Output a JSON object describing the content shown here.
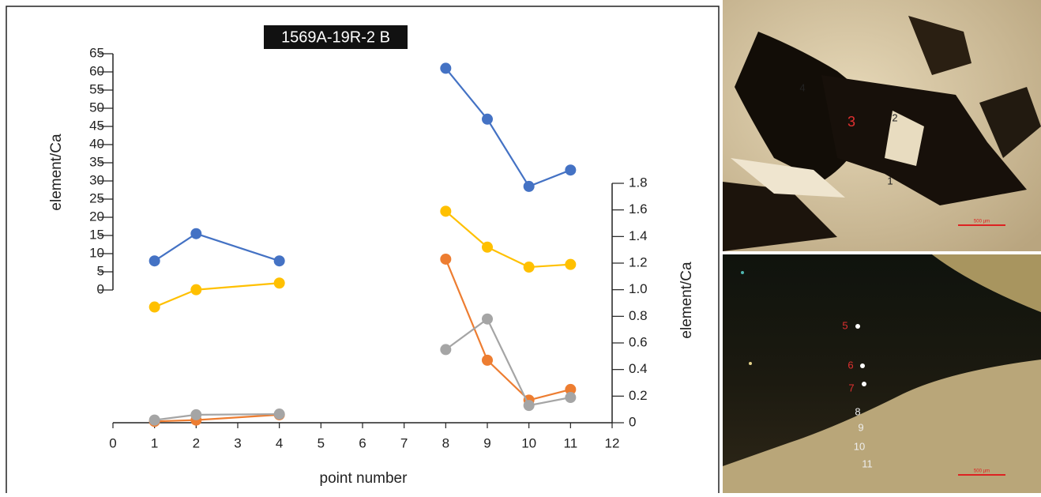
{
  "chart_data": {
    "type": "line",
    "title": "1569A-19R-2 B",
    "x_label": "point number",
    "y_label": "element/Ca",
    "y2_label": "element/Ca",
    "x": [
      1,
      2,
      4,
      5,
      6,
      7,
      8,
      9,
      10,
      11
    ],
    "series": [
      {
        "color": "#4472c4",
        "axis": "y",
        "values": [
          8,
          15.5,
          8,
          null,
          null,
          null,
          61,
          47,
          28.5,
          33
        ]
      },
      {
        "color": "#ffc000",
        "axis": "y2",
        "values": [
          0.87,
          1.0,
          1.05,
          null,
          null,
          null,
          1.59,
          1.32,
          1.17,
          1.19
        ]
      },
      {
        "color": "#ed7d31",
        "axis": "y2",
        "values": [
          0.01,
          0.02,
          0.06,
          null,
          null,
          null,
          1.23,
          0.47,
          0.17,
          0.25
        ]
      },
      {
        "color": "#a5a5a5",
        "axis": "y2",
        "values": [
          0.02,
          0.06,
          0.065,
          null,
          null,
          null,
          0.55,
          0.78,
          0.13,
          0.19
        ]
      }
    ],
    "xlim": [
      0,
      12
    ],
    "xticks": [
      0,
      1,
      2,
      3,
      4,
      5,
      6,
      7,
      8,
      9,
      10,
      11,
      12
    ],
    "ylim": [
      0,
      65
    ],
    "yticks": [
      0,
      5,
      10,
      15,
      20,
      25,
      30,
      35,
      40,
      45,
      50,
      55,
      60,
      65
    ],
    "y2lim": [
      0,
      1.8
    ],
    "y2ticks": [
      0,
      0.2,
      0.4,
      0.6,
      0.8,
      {
        "value": 1.0,
        "label": "1.0"
      },
      1.2,
      1.4,
      1.6,
      1.8
    ]
  },
  "photos": [
    {
      "labels": [
        "1",
        "2",
        "3",
        "4"
      ],
      "scale_bar": "500 µm"
    },
    {
      "labels": [
        "5",
        "6",
        "7",
        "8",
        "9",
        "10",
        "11"
      ],
      "scale_bar": "500 µm"
    }
  ]
}
